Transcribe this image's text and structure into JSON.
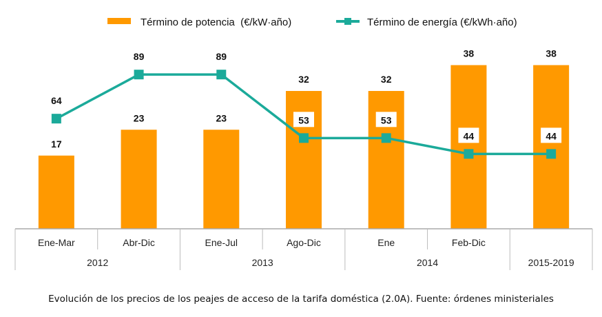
{
  "chart_data": {
    "type": "bar+line",
    "categories": [
      "Ene-Mar",
      "Abr-Dic",
      "Ene-Jul",
      "Ago-Dic",
      "Ene",
      "Feb-Dic",
      ""
    ],
    "groups": [
      {
        "label": "2012",
        "span": 2
      },
      {
        "label": "2013",
        "span": 2
      },
      {
        "label": "2014",
        "span": 2
      },
      {
        "label": "2015-2019",
        "span": 1
      }
    ],
    "series": [
      {
        "name": "Término de potencia  (€/kW·año)",
        "type": "bar",
        "color": "#FF9900",
        "values": [
          17,
          23,
          23,
          32,
          32,
          38,
          38
        ]
      },
      {
        "name": "Término de energía (€/kWh·año)",
        "type": "line",
        "color": "#1BAA9A",
        "values": [
          64,
          89,
          89,
          53,
          53,
          44,
          44
        ]
      }
    ],
    "legend": "top",
    "grid": false
  },
  "caption": "Evolución de los precios de los peajes de acceso de la tarifa doméstica (2.0A). Fuente: órdenes ministeriales"
}
